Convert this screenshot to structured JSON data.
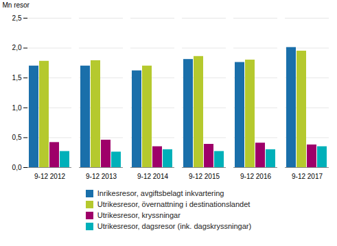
{
  "chart_data": {
    "type": "bar",
    "ylabel": "Mn resor",
    "categories": [
      "9-12 2012",
      "9-12 2013",
      "9-12 2014",
      "9-12 2015",
      "9-12 2016",
      "9-12 2017"
    ],
    "series": [
      {
        "name": "Inrikesresor, avgiftsbelagt inkvartering",
        "color": "#1a6faa",
        "values": [
          1.7,
          1.7,
          1.62,
          1.81,
          1.76,
          2.01
        ]
      },
      {
        "name": "Utrikesresor, övernattning i destinationslandet",
        "color": "#b5c92e",
        "values": [
          1.78,
          1.79,
          1.7,
          1.86,
          1.8,
          1.95
        ]
      },
      {
        "name": "Utrikesresor, kryssningar",
        "color": "#9e0069",
        "values": [
          0.42,
          0.46,
          0.35,
          0.39,
          0.41,
          0.38
        ]
      },
      {
        "name": "Utrikesresor, dagsresor (ink. dagskryssningar)",
        "color": "#00b0b9",
        "values": [
          0.27,
          0.26,
          0.3,
          0.27,
          0.3,
          0.35
        ]
      }
    ],
    "ylim": [
      0,
      2.5
    ],
    "yticks": [
      {
        "value": 0.0,
        "label": "0,0"
      },
      {
        "value": 0.5,
        "label": "0,5"
      },
      {
        "value": 1.0,
        "label": "1,0"
      },
      {
        "value": 1.5,
        "label": "1,5"
      },
      {
        "value": 2.0,
        "label": "2,0"
      },
      {
        "value": 2.5,
        "label": "2,5"
      }
    ],
    "grid": true,
    "legend": "bottom"
  }
}
